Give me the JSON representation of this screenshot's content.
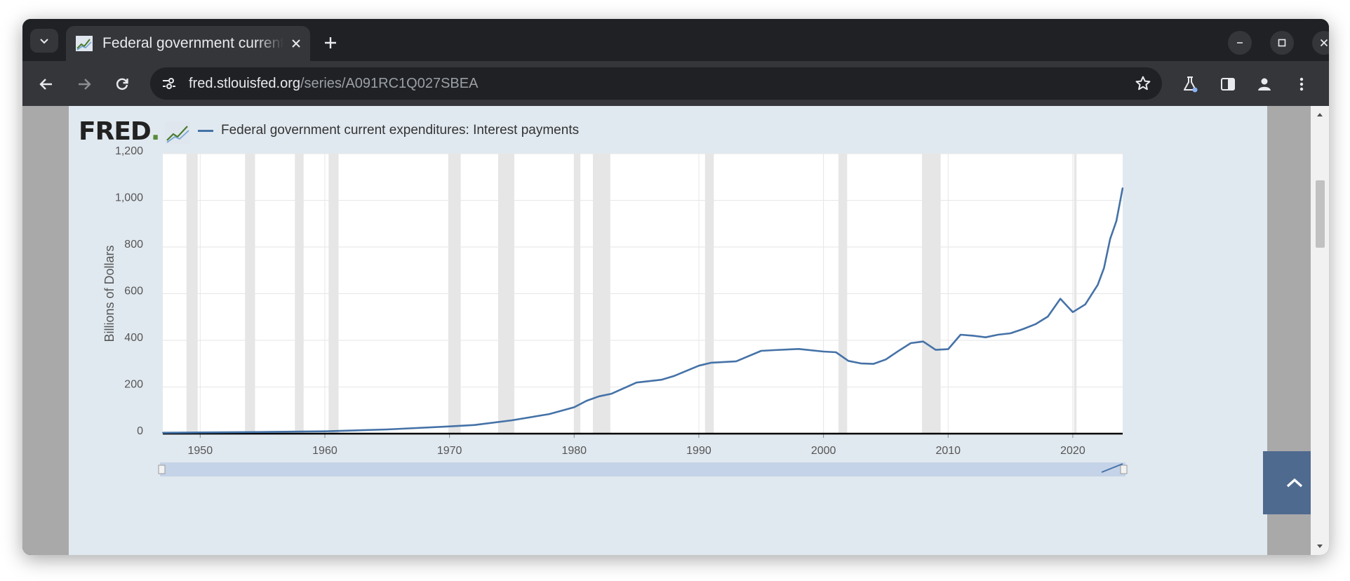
{
  "browser": {
    "tab": {
      "title": "Federal government current expenditures: Interest payments",
      "close": "close-tab"
    },
    "url": {
      "host": "fred.stlouisfed.org",
      "path": "/series/A091RC1Q027SBEA"
    },
    "window_buttons": [
      "minimize",
      "maximize",
      "close"
    ]
  },
  "page": {
    "logo": "FRED",
    "logo_mark": ".",
    "legend_label": "Federal government current expenditures: Interest payments"
  },
  "chart_data": {
    "type": "line",
    "ylabel": "Billions of Dollars",
    "xlabel": "",
    "ylim": [
      0,
      1200
    ],
    "xlim": [
      1947,
      2024
    ],
    "yticks": [
      0,
      200,
      400,
      600,
      800,
      1000,
      1200
    ],
    "xticks": [
      1950,
      1960,
      1970,
      1980,
      1990,
      2000,
      2010,
      2020
    ],
    "grid": true,
    "legend": "top-left",
    "series": [
      {
        "name": "Federal government current expenditures: Interest payments",
        "color": "#4572a7",
        "x": [
          1947,
          1950,
          1955,
          1958,
          1960,
          1965,
          1970,
          1972,
          1975,
          1978,
          1980,
          1981,
          1982,
          1983,
          1985,
          1987,
          1988,
          1990,
          1991,
          1993,
          1995,
          1996,
          1998,
          2000,
          2001,
          2002,
          2003,
          2004,
          2005,
          2006,
          2007,
          2008,
          2009,
          2010,
          2011,
          2012,
          2013,
          2014,
          2015,
          2016,
          2017,
          2018,
          2019,
          2020,
          2021,
          2022,
          2022.5,
          2023,
          2023.5,
          2024
        ],
        "y": [
          4,
          5,
          7,
          9,
          10,
          18,
          31,
          37,
          57,
          84,
          113,
          141,
          160,
          171,
          219,
          231,
          247,
          291,
          304,
          310,
          355,
          358,
          363,
          352,
          349,
          312,
          301,
          299,
          318,
          354,
          388,
          395,
          359,
          362,
          424,
          420,
          413,
          424,
          430,
          448,
          469,
          502,
          578,
          521,
          554,
          638,
          710,
          835,
          912,
          1053
        ]
      }
    ],
    "recessions": [
      [
        1948.9,
        1949.8
      ],
      [
        1953.6,
        1954.4
      ],
      [
        1957.6,
        1958.3
      ],
      [
        1960.3,
        1961.1
      ],
      [
        1969.9,
        1970.9
      ],
      [
        1973.9,
        1975.2
      ],
      [
        1980.0,
        1980.5
      ],
      [
        1981.5,
        1982.9
      ],
      [
        1990.5,
        1991.2
      ],
      [
        2001.2,
        2001.9
      ],
      [
        2007.9,
        2009.4
      ],
      [
        2020.1,
        2020.3
      ]
    ]
  }
}
